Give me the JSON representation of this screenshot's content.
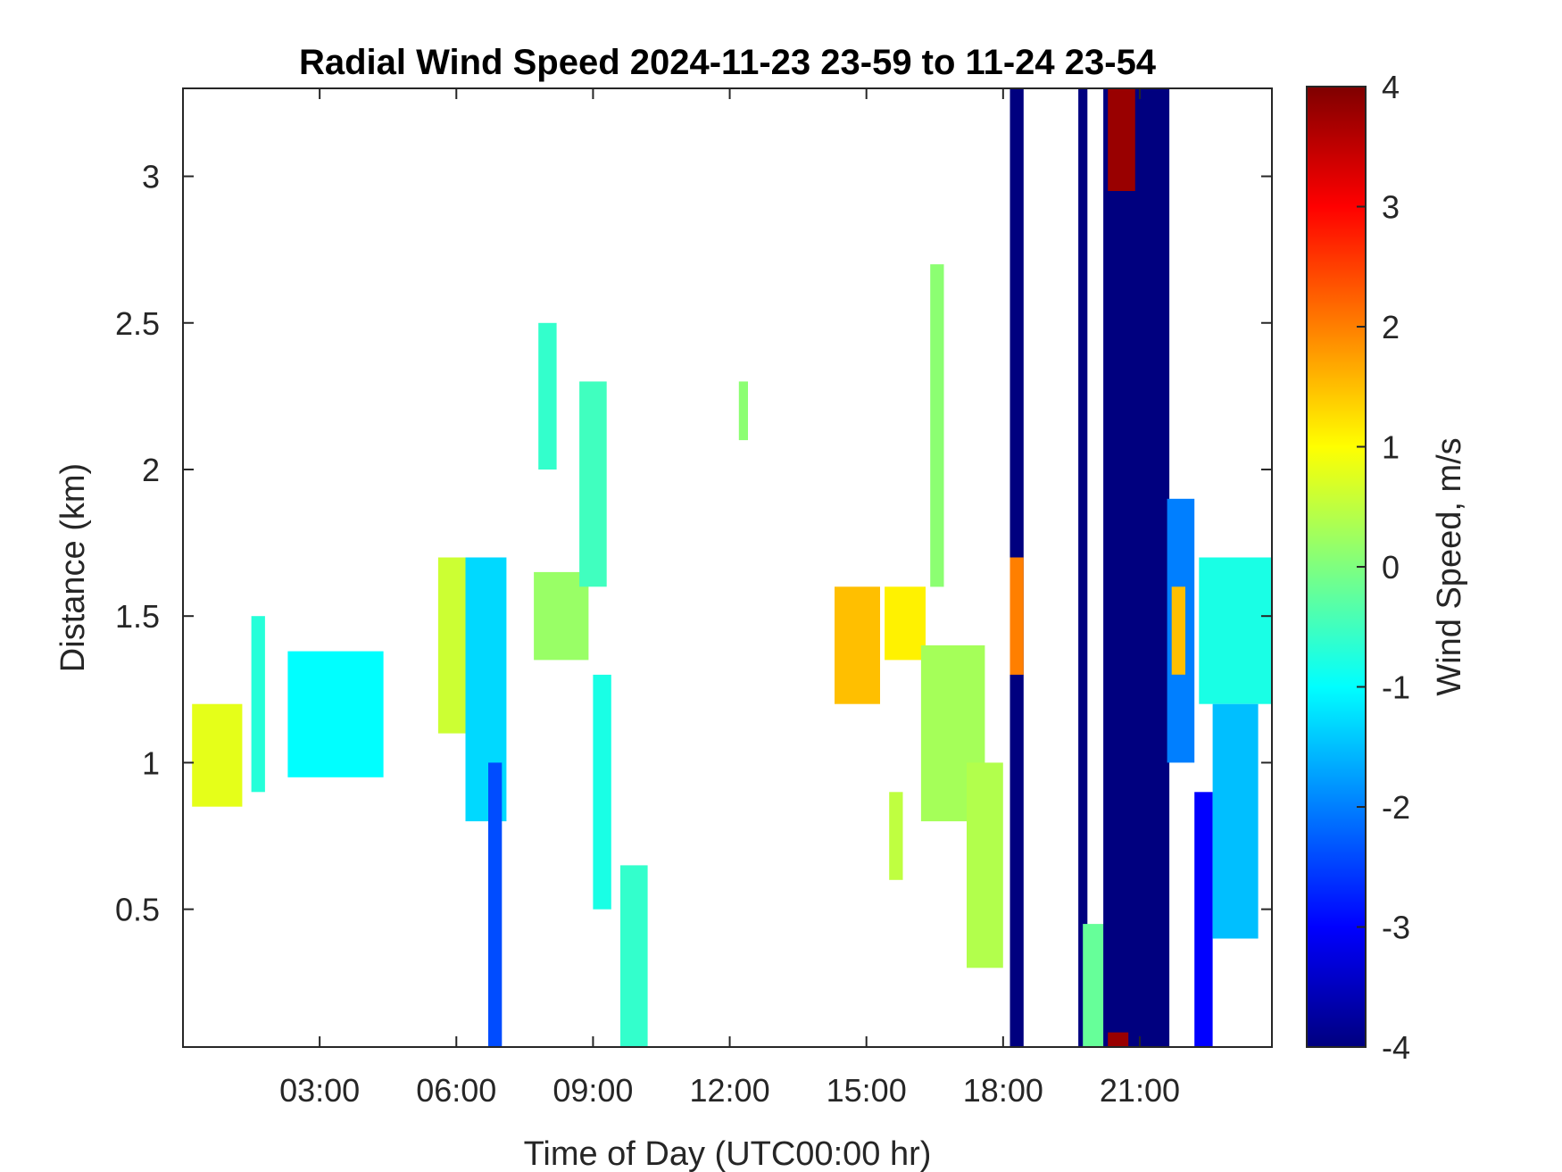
{
  "chart_data": {
    "type": "heatmap",
    "title": "Radial Wind Speed 2024-11-23 23-59 to 11-24 23-54",
    "xlabel": "Time of Day (UTC00:00 hr)",
    "ylabel": "Distance (km)",
    "x_unit": "hours UTC",
    "xlim": [
      0.0,
      23.9
    ],
    "ylim": [
      0.03,
      3.3
    ],
    "x_ticks": [
      {
        "value": 3,
        "label": "03:00"
      },
      {
        "value": 6,
        "label": "06:00"
      },
      {
        "value": 9,
        "label": "09:00"
      },
      {
        "value": 12,
        "label": "12:00"
      },
      {
        "value": 15,
        "label": "15:00"
      },
      {
        "value": 18,
        "label": "18:00"
      },
      {
        "value": 21,
        "label": "21:00"
      }
    ],
    "y_ticks": [
      {
        "value": 0.5,
        "label": "0.5"
      },
      {
        "value": 1,
        "label": "1"
      },
      {
        "value": 1.5,
        "label": "1.5"
      },
      {
        "value": 2,
        "label": "2"
      },
      {
        "value": 2.5,
        "label": "2.5"
      },
      {
        "value": 3,
        "label": "3"
      }
    ],
    "colorbar": {
      "label": "Wind Speed, m/s",
      "colormap": "jet",
      "range": [
        -4,
        4
      ],
      "ticks": [
        {
          "value": 4,
          "label": "4"
        },
        {
          "value": 3,
          "label": "3"
        },
        {
          "value": 2,
          "label": "2"
        },
        {
          "value": 1,
          "label": "1"
        },
        {
          "value": 0,
          "label": "0"
        },
        {
          "value": -1,
          "label": "-1"
        },
        {
          "value": -2,
          "label": "-2"
        },
        {
          "value": -3,
          "label": "-3"
        },
        {
          "value": -4,
          "label": "-4"
        }
      ],
      "colors": [
        "#00007f",
        "#0000ff",
        "#007fff",
        "#00ffff",
        "#7fff7f",
        "#ffff00",
        "#ff7f00",
        "#ff0000",
        "#7f0000"
      ]
    },
    "grid": false,
    "regions": [
      {
        "x": [
          0.2,
          1.3
        ],
        "y": [
          0.85,
          1.2
        ],
        "value": 0.8
      },
      {
        "x": [
          1.5,
          1.8
        ],
        "y": [
          0.9,
          1.5
        ],
        "value": -0.7
      },
      {
        "x": [
          2.3,
          4.4
        ],
        "y": [
          0.95,
          1.38
        ],
        "value": -1.0
      },
      {
        "x": [
          5.6,
          6.3
        ],
        "y": [
          1.1,
          1.7
        ],
        "value": 0.6
      },
      {
        "x": [
          6.2,
          7.1
        ],
        "y": [
          0.8,
          1.7
        ],
        "value": -1.3
      },
      {
        "x": [
          6.7,
          7.0
        ],
        "y": [
          0.03,
          1.0
        ],
        "value": -2.4
      },
      {
        "x": [
          7.7,
          8.9
        ],
        "y": [
          1.35,
          1.65
        ],
        "value": 0.2
      },
      {
        "x": [
          7.8,
          8.2
        ],
        "y": [
          2.0,
          2.5
        ],
        "value": -0.6
      },
      {
        "x": [
          8.7,
          9.3
        ],
        "y": [
          1.6,
          2.3
        ],
        "value": -0.5
      },
      {
        "x": [
          9.0,
          9.4
        ],
        "y": [
          0.5,
          1.3
        ],
        "value": -0.8
      },
      {
        "x": [
          9.6,
          10.2
        ],
        "y": [
          0.03,
          0.65
        ],
        "value": -0.6
      },
      {
        "x": [
          12.2,
          12.4
        ],
        "y": [
          2.1,
          2.3
        ],
        "value": 0.1
      },
      {
        "x": [
          14.3,
          15.3
        ],
        "y": [
          1.2,
          1.6
        ],
        "value": 1.5
      },
      {
        "x": [
          15.4,
          16.3
        ],
        "y": [
          1.35,
          1.6
        ],
        "value": 1.1
      },
      {
        "x": [
          16.4,
          16.7
        ],
        "y": [
          1.6,
          2.7
        ],
        "value": 0.1
      },
      {
        "x": [
          16.2,
          17.6
        ],
        "y": [
          0.8,
          1.4
        ],
        "value": 0.3
      },
      {
        "x": [
          17.2,
          18.0
        ],
        "y": [
          0.3,
          1.0
        ],
        "value": 0.4
      },
      {
        "x": [
          15.5,
          15.8
        ],
        "y": [
          0.6,
          0.9
        ],
        "value": 0.5
      },
      {
        "x": [
          18.15,
          18.45
        ],
        "y": [
          0.03,
          3.3
        ],
        "value": -4.0
      },
      {
        "x": [
          18.15,
          18.45
        ],
        "y": [
          1.3,
          1.7
        ],
        "value": 2.0
      },
      {
        "x": [
          19.65,
          19.85
        ],
        "y": [
          0.03,
          3.3
        ],
        "value": -4.0
      },
      {
        "x": [
          19.75,
          20.3
        ],
        "y": [
          0.03,
          0.45
        ],
        "value": -0.2
      },
      {
        "x": [
          20.2,
          21.65
        ],
        "y": [
          0.03,
          3.3
        ],
        "value": -4.0
      },
      {
        "x": [
          20.3,
          20.9
        ],
        "y": [
          2.95,
          3.3
        ],
        "value": 3.8
      },
      {
        "x": [
          20.3,
          20.75
        ],
        "y": [
          0.03,
          0.08
        ],
        "value": 3.8
      },
      {
        "x": [
          21.6,
          22.2
        ],
        "y": [
          1.0,
          1.9
        ],
        "value": -2.0
      },
      {
        "x": [
          21.7,
          22.0
        ],
        "y": [
          1.3,
          1.6
        ],
        "value": 1.5
      },
      {
        "x": [
          22.2,
          22.6
        ],
        "y": [
          0.03,
          0.9
        ],
        "value": -3.0
      },
      {
        "x": [
          22.3,
          23.9
        ],
        "y": [
          1.2,
          1.7
        ],
        "value": -0.8
      },
      {
        "x": [
          22.6,
          23.6
        ],
        "y": [
          0.4,
          1.2
        ],
        "value": -1.5
      }
    ]
  }
}
